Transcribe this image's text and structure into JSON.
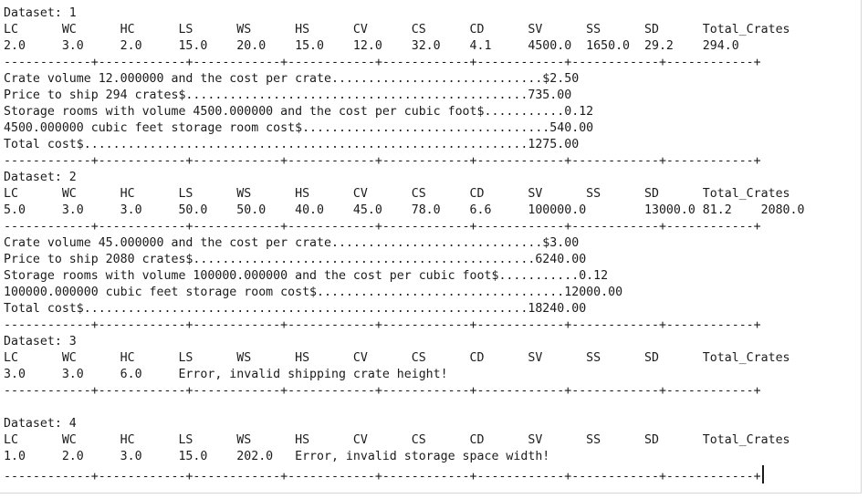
{
  "console": {
    "background": "#ffffff",
    "text_color": "#1b1b1b",
    "edge_color": "#d6d6d6"
  },
  "lines": [
    "Dataset: 1",
    "LC      WC      HC      LS      WS      HS      CV      CS      CD      SV      SS      SD      Total_Crates",
    "2.0     3.0     2.0     15.0    20.0    15.0    12.0    32.0    4.1     4500.0  1650.0  29.2    294.0",
    "------------+------------+------------+------------+------------+------------+------------+------------+",
    "Crate volume 12.000000 and the cost per crate.............................$2.50",
    "Price to ship 294 crates$...............................................735.00",
    "Storage rooms with volume 4500.000000 and the cost per cubic foot$...........0.12",
    "4500.000000 cubic feet storage room cost$..................................540.00",
    "Total cost$.............................................................1275.00",
    "------------+------------+------------+------------+------------+------------+------------+------------+",
    "Dataset: 2",
    "LC      WC      HC      LS      WS      HS      CV      CS      CD      SV      SS      SD      Total_Crates",
    "5.0     3.0     3.0     50.0    50.0    40.0    45.0    78.0    6.6     100000.0        13000.0 81.2    2080.0",
    "------------+------------+------------+------------+------------+------------+------------+------------+",
    "Crate volume 45.000000 and the cost per crate.............................$3.00",
    "Price to ship 2080 crates$...............................................6240.00",
    "Storage rooms with volume 100000.000000 and the cost per cubic foot$...........0.12",
    "100000.000000 cubic feet storage room cost$..................................12000.00",
    "Total cost$.............................................................18240.00",
    "------------+------------+------------+------------+------------+------------+------------+------------+",
    "Dataset: 3",
    "LC      WC      HC      LS      WS      HS      CV      CS      CD      SV      SS      SD      Total_Crates",
    "3.0     3.0     6.0     Error, invalid shipping crate height!",
    "------------+------------+------------+------------+------------+------------+------------+------------+",
    "",
    "Dataset: 4",
    "LC      WC      HC      LS      WS      HS      CV      CS      CD      SV      SS      SD      Total_Crates",
    "1.0     2.0     3.0     15.0    202.0   Error, invalid storage space width!",
    "------------+------------+------------+------------+------------+------------+------------+------------+"
  ]
}
